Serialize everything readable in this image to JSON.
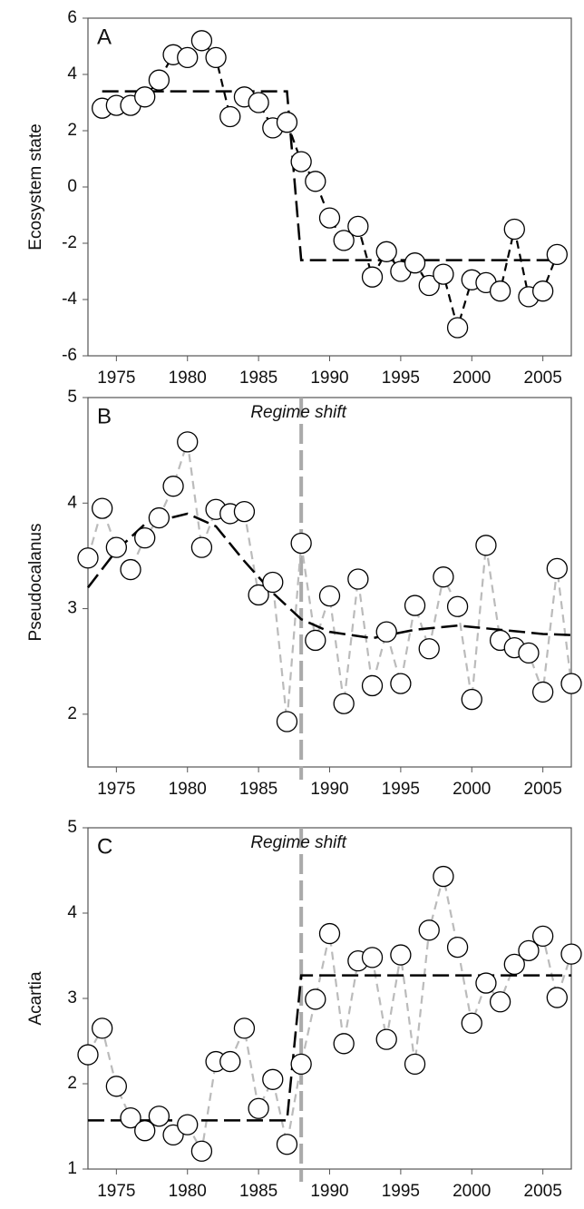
{
  "chart_data": [
    {
      "type": "line",
      "panel_label": "A",
      "ylabel": "Ecosystem state",
      "xlim": [
        1973,
        2007
      ],
      "xticks": [
        1975,
        1980,
        1985,
        1990,
        1995,
        2000,
        2005
      ],
      "ylim": [
        -6,
        6
      ],
      "yticks": [
        -6,
        -4,
        -2,
        0,
        2,
        4,
        6
      ],
      "series": [
        {
          "color": "#000000",
          "dashed": true,
          "markers": true,
          "x": [
            1974,
            1975,
            1976,
            1977,
            1978,
            1979,
            1980,
            1981,
            1982,
            1983,
            1984,
            1985,
            1986,
            1987,
            1988,
            1989,
            1990,
            1991,
            1992,
            1993,
            1994,
            1995,
            1996,
            1997,
            1998,
            1999,
            2000,
            2001,
            2002,
            2003,
            2004,
            2005,
            2006
          ],
          "values": [
            2.8,
            2.9,
            2.9,
            3.2,
            3.8,
            4.7,
            4.6,
            5.2,
            4.6,
            2.5,
            3.2,
            3.0,
            2.1,
            2.3,
            0.9,
            0.2,
            -1.1,
            -1.9,
            -1.4,
            -3.2,
            -2.3,
            -3.0,
            -2.7,
            -3.5,
            -3.1,
            -5.0,
            -3.3,
            -3.4,
            -3.7,
            -1.5,
            -3.9,
            -3.7,
            -2.4
          ]
        },
        {
          "color": "#000000",
          "dashed": true,
          "markers": false,
          "x": [
            1974,
            1987,
            1988,
            2006
          ],
          "values": [
            3.4,
            3.4,
            -2.6,
            -2.6
          ]
        }
      ]
    },
    {
      "type": "line",
      "panel_label": "B",
      "ylabel": "Pseudocalanus",
      "annotation": "Regime shift",
      "vline": 1988,
      "xlim": [
        1973,
        2007
      ],
      "xticks": [
        1975,
        1980,
        1985,
        1990,
        1995,
        2000,
        2005
      ],
      "ylim": [
        1.5,
        5
      ],
      "yticks": [
        2,
        3,
        4,
        5
      ],
      "series": [
        {
          "color": "#bbbbbb",
          "dashed": true,
          "markers": true,
          "x": [
            1973,
            1974,
            1975,
            1976,
            1977,
            1978,
            1979,
            1980,
            1981,
            1982,
            1983,
            1984,
            1985,
            1986,
            1987,
            1988,
            1989,
            1990,
            1991,
            1992,
            1993,
            1994,
            1995,
            1996,
            1997,
            1998,
            1999,
            2000,
            2001,
            2002,
            2003,
            2004,
            2005,
            2006,
            2007
          ],
          "values": [
            3.48,
            3.95,
            3.58,
            3.37,
            3.67,
            3.86,
            4.16,
            4.58,
            3.58,
            3.94,
            3.9,
            3.92,
            3.13,
            3.25,
            1.93,
            3.62,
            2.7,
            3.12,
            2.1,
            3.28,
            2.27,
            2.78,
            2.29,
            3.03,
            2.62,
            3.3,
            3.02,
            2.14,
            3.6,
            2.7,
            2.63,
            2.58,
            2.21,
            3.38,
            2.29
          ]
        },
        {
          "color": "#000000",
          "dashed": true,
          "markers": false,
          "x": [
            1973,
            1975,
            1977,
            1980,
            1982,
            1984,
            1986,
            1988,
            1990,
            1993,
            1996,
            1999,
            2002,
            2005,
            2007
          ],
          "values": [
            3.2,
            3.55,
            3.8,
            3.9,
            3.78,
            3.45,
            3.15,
            2.9,
            2.78,
            2.72,
            2.8,
            2.84,
            2.8,
            2.76,
            2.75
          ]
        }
      ]
    },
    {
      "type": "line",
      "panel_label": "C",
      "ylabel": "Acartia",
      "annotation": "Regime shift",
      "vline": 1988,
      "xlim": [
        1973,
        2007
      ],
      "xticks": [
        1975,
        1980,
        1985,
        1990,
        1995,
        2000,
        2005
      ],
      "ylim": [
        1,
        5
      ],
      "yticks": [
        1,
        2,
        3,
        4,
        5
      ],
      "series": [
        {
          "color": "#bbbbbb",
          "dashed": true,
          "markers": true,
          "x": [
            1973,
            1974,
            1975,
            1976,
            1977,
            1978,
            1979,
            1980,
            1981,
            1982,
            1983,
            1984,
            1985,
            1986,
            1987,
            1988,
            1989,
            1990,
            1991,
            1992,
            1993,
            1994,
            1995,
            1996,
            1997,
            1998,
            1999,
            2000,
            2001,
            2002,
            2003,
            2004,
            2005,
            2006,
            2007
          ],
          "values": [
            2.34,
            2.65,
            1.97,
            1.6,
            1.45,
            1.62,
            1.4,
            1.52,
            1.21,
            2.26,
            2.26,
            2.65,
            1.71,
            2.05,
            1.29,
            2.23,
            2.99,
            3.76,
            2.47,
            3.44,
            3.48,
            2.52,
            3.51,
            2.23,
            3.8,
            4.43,
            3.6,
            2.71,
            3.18,
            2.96,
            3.4,
            3.56,
            3.73,
            3.01,
            3.52
          ]
        },
        {
          "color": "#000000",
          "dashed": true,
          "markers": false,
          "x": [
            1973,
            1987,
            1988,
            2007
          ],
          "values": [
            1.57,
            1.57,
            3.27,
            3.27
          ]
        }
      ]
    }
  ]
}
